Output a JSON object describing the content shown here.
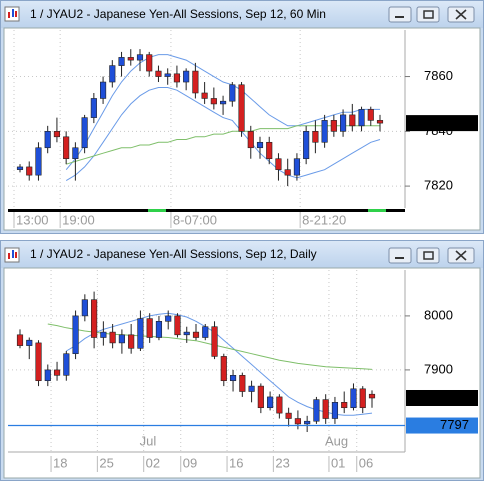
{
  "chart_data": [
    {
      "type": "candlestick",
      "title": "1 / JYAU2 - Japanese Yen-All Sessions, Sep 12, 60 Min",
      "categories": [
        "13:00",
        null,
        null,
        null,
        null,
        "19:00",
        null,
        null,
        null,
        null,
        null,
        null,
        null,
        null,
        null,
        null,
        null,
        "8-07:00",
        null,
        null,
        null,
        null,
        null,
        null,
        null,
        null,
        null,
        null,
        null,
        null,
        null,
        "8-21:20",
        null,
        null,
        null,
        null,
        null,
        null,
        null,
        null
      ],
      "open": [
        7826,
        7827,
        7824,
        7834,
        7840,
        7838,
        7830,
        7834,
        7845,
        7852,
        7858,
        7864,
        7867,
        7866,
        7868,
        7862,
        7860,
        7861,
        7858,
        7862,
        7854,
        7852,
        7850,
        7851,
        7857,
        7840,
        7834,
        7836,
        7830,
        7826,
        7824,
        7830,
        7840,
        7836,
        7844,
        7840,
        7846,
        7842,
        7848,
        7844
      ],
      "high": [
        7828,
        7829,
        7836,
        7842,
        7845,
        7840,
        7836,
        7846,
        7854,
        7860,
        7866,
        7869,
        7870,
        7870,
        7869,
        7864,
        7863,
        7864,
        7863,
        7865,
        7858,
        7856,
        7853,
        7858,
        7858,
        7842,
        7838,
        7838,
        7832,
        7830,
        7832,
        7842,
        7844,
        7846,
        7846,
        7848,
        7850,
        7849,
        7849,
        7846
      ],
      "low": [
        7825,
        7822,
        7822,
        7832,
        7836,
        7828,
        7822,
        7832,
        7843,
        7850,
        7856,
        7860,
        7864,
        7862,
        7860,
        7858,
        7857,
        7856,
        7855,
        7852,
        7850,
        7848,
        7846,
        7849,
        7838,
        7830,
        7830,
        7828,
        7822,
        7820,
        7822,
        7828,
        7832,
        7834,
        7838,
        7838,
        7840,
        7840,
        7842,
        7840
      ],
      "close": [
        7827,
        7824,
        7834,
        7840,
        7838,
        7830,
        7834,
        7845,
        7852,
        7858,
        7864,
        7867,
        7866,
        7868,
        7862,
        7860,
        7861,
        7858,
        7862,
        7854,
        7852,
        7850,
        7851,
        7857,
        7840,
        7834,
        7836,
        7830,
        7826,
        7824,
        7830,
        7840,
        7836,
        7844,
        7840,
        7846,
        7842,
        7848,
        7844,
        7843
      ],
      "up_color": "#1f4fd8",
      "down_color": "#d42020",
      "overlays": [
        {
          "color": "#6a9be8",
          "values": [
            null,
            null,
            null,
            null,
            null,
            7826,
            7830,
            7835,
            7841,
            7847,
            7853,
            7858,
            7862,
            7865,
            7867,
            7868,
            7868,
            7867,
            7866,
            7864,
            7862,
            7860,
            7858,
            7857,
            7855,
            7852,
            7849,
            7846,
            7844,
            7842,
            7842,
            7843,
            7844,
            7845,
            7846,
            7847,
            7847,
            7848,
            7848,
            7848
          ]
        },
        {
          "color": "#6a9be8",
          "values": [
            null,
            null,
            null,
            null,
            null,
            7822,
            7824,
            7827,
            7831,
            7836,
            7841,
            7846,
            7850,
            7853,
            7855,
            7856,
            7856,
            7855,
            7853,
            7851,
            7849,
            7847,
            7845,
            7844,
            7840,
            7836,
            7832,
            7829,
            7826,
            7824,
            7823,
            7824,
            7825,
            7826,
            7828,
            7830,
            7832,
            7834,
            7836,
            7837
          ]
        },
        {
          "color": "#7fbf6a",
          "values": [
            null,
            null,
            null,
            null,
            null,
            7828,
            7829,
            7830,
            7831,
            7832,
            7833,
            7834,
            7834,
            7835,
            7835,
            7836,
            7836,
            7837,
            7837,
            7838,
            7838,
            7839,
            7839,
            7840,
            7840,
            7840,
            7841,
            7841,
            7841,
            7841,
            7842,
            7842,
            7842,
            7842,
            7842,
            7842,
            7842,
            7842,
            7842,
            7842
          ]
        }
      ],
      "ylim": [
        7812,
        7877
      ],
      "yticks": [
        7820,
        7840,
        7860
      ],
      "grid": true,
      "last_price": 7843
    },
    {
      "type": "candlestick",
      "title": "1 / JYAU2 - Japanese Yen-All Sessions, Sep 12, Daily",
      "categories": [
        null,
        null,
        null,
        null,
        "18",
        null,
        null,
        null,
        null,
        "25",
        null,
        null,
        null,
        null,
        "02",
        null,
        null,
        null,
        "09",
        null,
        null,
        null,
        null,
        "16",
        null,
        null,
        null,
        null,
        "23",
        null,
        null,
        null,
        null,
        null,
        "01",
        null,
        null,
        "06",
        null
      ],
      "month_categories": [
        null,
        null,
        null,
        null,
        null,
        null,
        null,
        null,
        null,
        null,
        null,
        null,
        null,
        null,
        "Jul",
        null,
        null,
        null,
        null,
        null,
        null,
        null,
        null,
        null,
        null,
        null,
        null,
        null,
        null,
        null,
        null,
        null,
        null,
        null,
        "Aug",
        null,
        null,
        null,
        null
      ],
      "open": [
        7965,
        7945,
        7950,
        7880,
        7900,
        7890,
        7930,
        8000,
        8030,
        7960,
        7970,
        7950,
        7965,
        7940,
        7995,
        7960,
        7990,
        8000,
        7965,
        7970,
        7960,
        7980,
        7925,
        7880,
        7890,
        7860,
        7870,
        7830,
        7850,
        7820,
        7810,
        7800,
        7805,
        7845,
        7810,
        7840,
        7830,
        7865,
        7855
      ],
      "high": [
        7975,
        7960,
        7955,
        7910,
        7915,
        7935,
        8010,
        8040,
        8045,
        7990,
        7985,
        7975,
        7985,
        8010,
        8005,
        8000,
        8010,
        8005,
        7980,
        7985,
        7985,
        7990,
        7930,
        7900,
        7895,
        7880,
        7875,
        7860,
        7855,
        7830,
        7825,
        7815,
        7850,
        7855,
        7850,
        7860,
        7875,
        7870,
        7862
      ],
      "low": [
        7940,
        7920,
        7870,
        7870,
        7880,
        7880,
        7920,
        7990,
        7940,
        7945,
        7940,
        7930,
        7930,
        7935,
        7950,
        7955,
        7975,
        7960,
        7950,
        7955,
        7955,
        7920,
        7870,
        7860,
        7850,
        7840,
        7820,
        7825,
        7810,
        7795,
        7790,
        7785,
        7800,
        7800,
        7800,
        7820,
        7825,
        7820,
        7830
      ],
      "close": [
        7945,
        7955,
        7880,
        7900,
        7890,
        7930,
        8000,
        8030,
        7960,
        7970,
        7950,
        7965,
        7940,
        7995,
        7960,
        7990,
        8000,
        7965,
        7970,
        7960,
        7980,
        7925,
        7880,
        7890,
        7860,
        7870,
        7830,
        7850,
        7820,
        7810,
        7800,
        7805,
        7845,
        7810,
        7840,
        7830,
        7865,
        7830,
        7848
      ],
      "up_color": "#1f4fd8",
      "down_color": "#d42020",
      "overlays": [
        {
          "color": "#6a9be8",
          "values": [
            null,
            null,
            null,
            null,
            null,
            7935,
            7945,
            7958,
            7968,
            7975,
            7980,
            7985,
            7990,
            7995,
            8000,
            8003,
            8005,
            8002,
            7998,
            7990,
            7980,
            7970,
            7955,
            7940,
            7925,
            7910,
            7895,
            7880,
            7865,
            7850,
            7840,
            7832,
            7826,
            7822,
            7818,
            7816,
            7816,
            7818,
            7820
          ]
        },
        {
          "color": "#7fbf6a",
          "values": [
            null,
            null,
            null,
            7985,
            7982,
            7978,
            7975,
            7972,
            7970,
            7968,
            7966,
            7965,
            7964,
            7963,
            7962,
            7961,
            7960,
            7958,
            7956,
            7954,
            7950,
            7946,
            7942,
            7938,
            7934,
            7930,
            7926,
            7922,
            7918,
            7915,
            7912,
            7910,
            7908,
            7906,
            7905,
            7904,
            7903,
            7902,
            7901
          ]
        }
      ],
      "ylim": [
        7748,
        8085
      ],
      "yticks": [
        7900,
        8000
      ],
      "grid": true,
      "last_price": 7848,
      "price_line": 7797
    }
  ]
}
